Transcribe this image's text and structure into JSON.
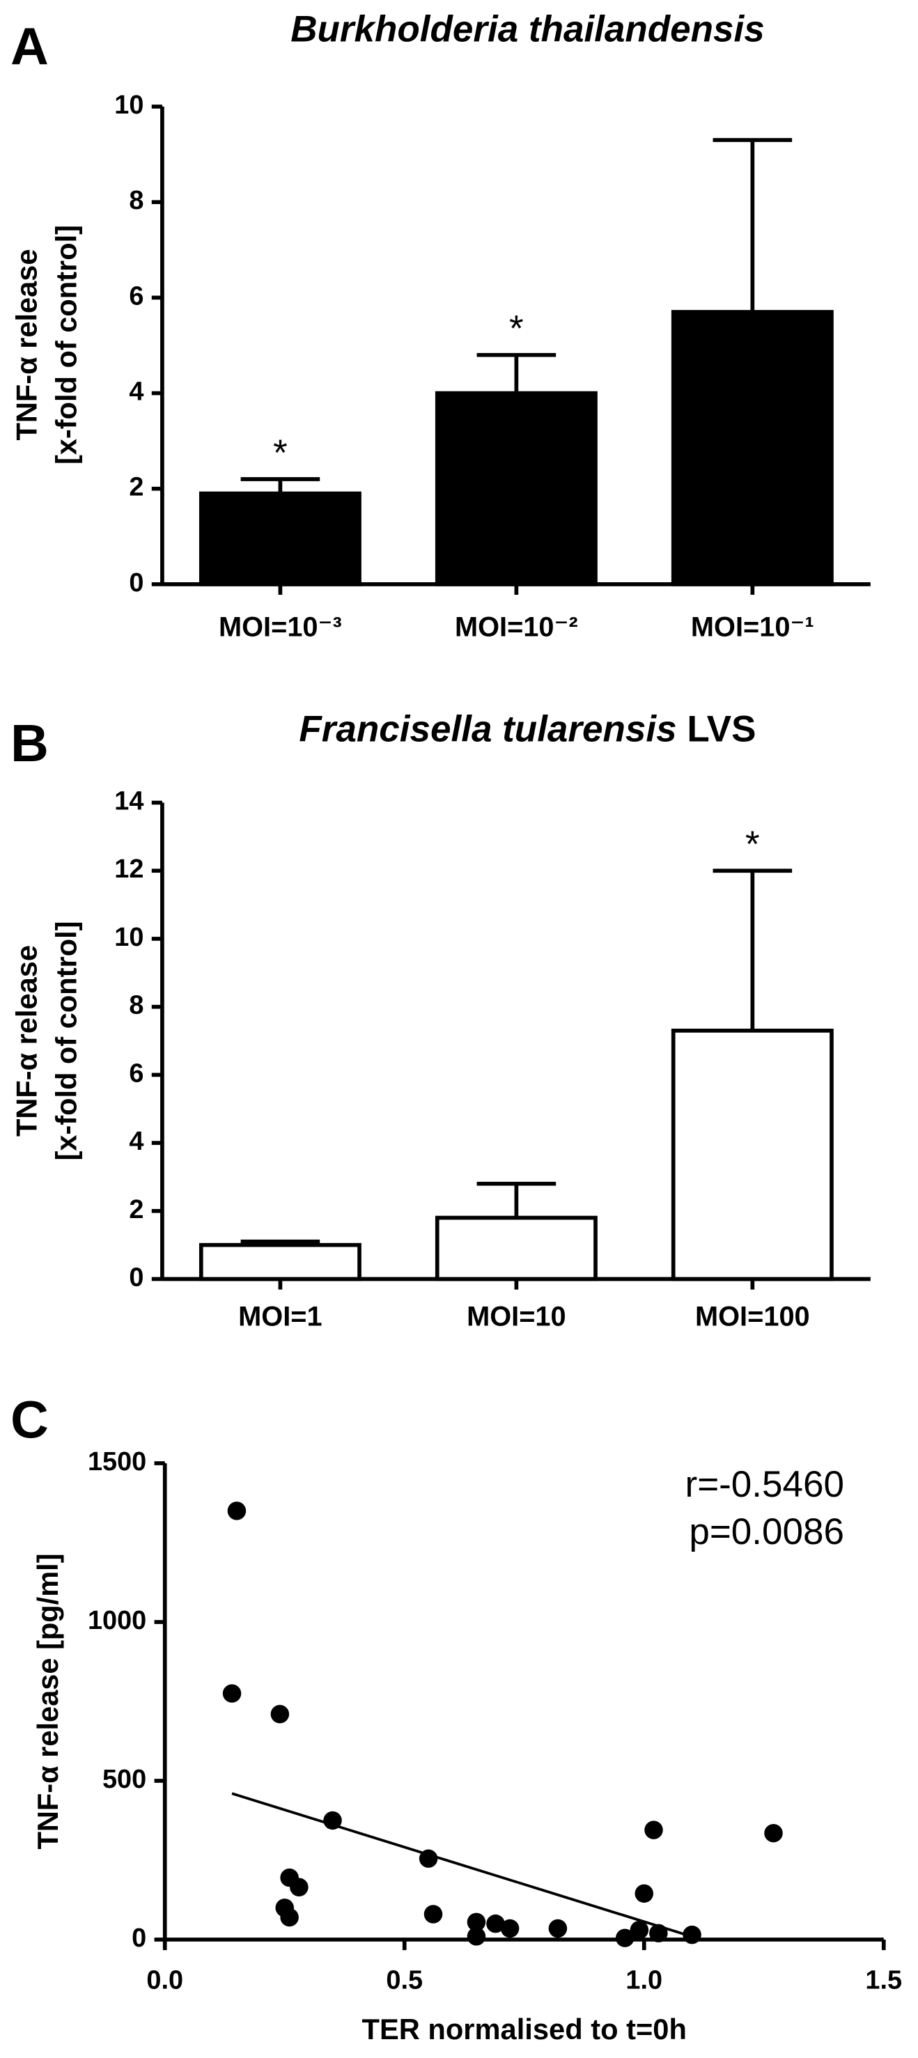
{
  "chart_data": [
    {
      "type": "bar",
      "panel": "A",
      "title": "Burkholderia thailandensis",
      "ylabel": [
        "TNF-α release",
        "[x-fold of control]"
      ],
      "categories": [
        "MOI=10⁻³",
        "MOI=10⁻²",
        "MOI=10⁻¹"
      ],
      "values": [
        1.9,
        4.0,
        5.7
      ],
      "errors": [
        0.3,
        0.8,
        3.6
      ],
      "value_annotations": [
        "*",
        "*",
        null
      ],
      "color": "#000000",
      "edgecolor": "#000000",
      "ylim": [
        0,
        10
      ],
      "yticks": [
        0,
        2,
        4,
        6,
        8,
        10
      ]
    },
    {
      "type": "bar",
      "panel": "B",
      "title": "Francisella tularensis",
      "title_suffix": "LVS",
      "ylabel": [
        "TNF-α release",
        "[x-fold of control]"
      ],
      "categories": [
        "MOI=1",
        "MOI=10",
        "MOI=100"
      ],
      "values": [
        1.0,
        1.8,
        7.3
      ],
      "errors": [
        0.1,
        1.0,
        4.7
      ],
      "value_annotations": [
        null,
        null,
        "*"
      ],
      "color": "#ffffff",
      "edgecolor": "#000000",
      "ylim": [
        0,
        14
      ],
      "yticks": [
        0,
        2,
        4,
        6,
        8,
        10,
        12,
        14
      ]
    },
    {
      "type": "scatter",
      "panel": "C",
      "xlabel": "TER normalised to t=0h",
      "ylabel": [
        "TNF-α release [pg/ml]"
      ],
      "annotations": [
        "r=-0.5460",
        "p=0.0086"
      ],
      "x": [
        0.15,
        0.14,
        0.24,
        0.35,
        0.55,
        0.26,
        0.28,
        0.25,
        0.26,
        0.56,
        0.65,
        0.65,
        0.69,
        0.72,
        0.82,
        0.96,
        0.99,
        1.03,
        1.1,
        1.0,
        1.02,
        1.27
      ],
      "y": [
        1350,
        775,
        710,
        375,
        255,
        195,
        165,
        100,
        70,
        80,
        55,
        10,
        50,
        35,
        35,
        5,
        30,
        20,
        15,
        145,
        345,
        335
      ],
      "fit": {
        "x": [
          0.14,
          1.12
        ],
        "y": [
          460,
          0
        ]
      },
      "color": "#000000",
      "xlim": [
        0,
        1.5
      ],
      "xticks": [
        {
          "value": 0,
          "label": "0.0"
        },
        0.5,
        {
          "value": 1,
          "label": "1.0"
        },
        1.5
      ],
      "ylim": [
        0,
        1500
      ],
      "yticks": [
        0,
        500,
        1000,
        1500
      ]
    }
  ]
}
